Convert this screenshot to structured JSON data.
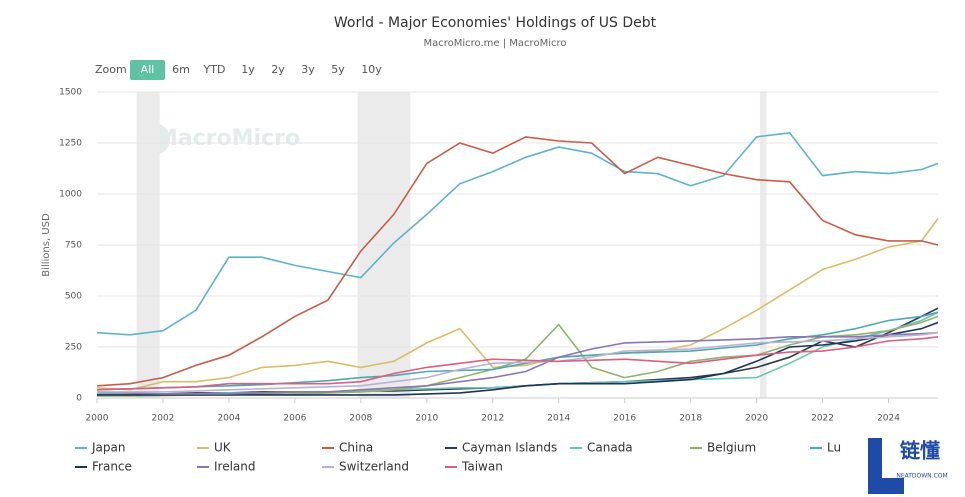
{
  "chart_data": {
    "type": "line",
    "title": "World - Major Economies' Holdings of US Debt",
    "subtitle": "MacroMicro.me | MacroMicro",
    "y_label": "Billions, USD",
    "zoom_label": "Zoom",
    "zoom_options": [
      "All",
      "6m",
      "YTD",
      "1y",
      "2y",
      "3y",
      "5y",
      "10y"
    ],
    "zoom_selected": "All",
    "watermark": "MacroMicro",
    "corner_mark": "链懂",
    "corner_mark_sub": "NEATDOWN.COM",
    "xlim": [
      2000,
      2025.5
    ],
    "xticks": [
      2000,
      2002,
      2004,
      2006,
      2008,
      2010,
      2012,
      2014,
      2016,
      2018,
      2020,
      2022,
      2024
    ],
    "ylim": [
      0,
      1500
    ],
    "yticks": [
      0,
      250,
      500,
      750,
      1000,
      1250,
      1500
    ],
    "grid": true,
    "shaded": [
      [
        2001.2,
        2001.9
      ],
      [
        2007.9,
        2009.5
      ],
      [
        2020.1,
        2020.3
      ]
    ],
    "x": [
      2000,
      2001,
      2002,
      2003,
      2004,
      2005,
      2006,
      2007,
      2008,
      2009,
      2010,
      2011,
      2012,
      2013,
      2014,
      2015,
      2016,
      2017,
      2018,
      2019,
      2020,
      2021,
      2022,
      2023,
      2024,
      2025,
      2025.5
    ],
    "series": [
      {
        "name": "Japan",
        "color": "#5fb3c9",
        "values": [
          320,
          310,
          330,
          430,
          690,
          690,
          650,
          620,
          590,
          760,
          900,
          1050,
          1110,
          1180,
          1230,
          1200,
          1110,
          1100,
          1040,
          1090,
          1280,
          1300,
          1090,
          1110,
          1100,
          1120,
          1150
        ]
      },
      {
        "name": "UK",
        "color": "#d8be6a",
        "values": [
          50,
          40,
          80,
          80,
          100,
          150,
          160,
          180,
          150,
          180,
          270,
          340,
          150,
          160,
          200,
          210,
          220,
          230,
          260,
          340,
          430,
          530,
          630,
          680,
          740,
          770,
          880
        ]
      },
      {
        "name": "China",
        "color": "#c65d4b",
        "values": [
          60,
          70,
          100,
          160,
          210,
          300,
          400,
          480,
          720,
          900,
          1150,
          1250,
          1200,
          1280,
          1260,
          1250,
          1100,
          1180,
          1140,
          1100,
          1070,
          1060,
          870,
          800,
          770,
          770,
          750
        ]
      },
      {
        "name": "Cayman Islands",
        "color": "#2e3a4f",
        "values": [
          20,
          20,
          20,
          25,
          25,
          30,
          30,
          30,
          35,
          35,
          40,
          45,
          50,
          60,
          70,
          75,
          80,
          90,
          100,
          120,
          150,
          200,
          280,
          250,
          320,
          400,
          440
        ]
      },
      {
        "name": "Canada",
        "color": "#6cc3b7",
        "values": [
          20,
          20,
          20,
          20,
          25,
          25,
          30,
          30,
          35,
          40,
          45,
          50,
          50,
          60,
          70,
          75,
          80,
          85,
          90,
          95,
          100,
          170,
          250,
          290,
          330,
          380,
          420
        ]
      },
      {
        "name": "Belgium",
        "color": "#8fb36e",
        "values": [
          10,
          10,
          12,
          15,
          15,
          20,
          20,
          25,
          30,
          40,
          60,
          100,
          140,
          190,
          360,
          150,
          100,
          130,
          180,
          200,
          210,
          260,
          300,
          310,
          330,
          370,
          400
        ]
      },
      {
        "name": "Lu",
        "color": "#4ea8b0",
        "values": [
          40,
          45,
          50,
          55,
          60,
          65,
          75,
          85,
          100,
          110,
          130,
          135,
          140,
          170,
          200,
          210,
          220,
          225,
          230,
          245,
          260,
          290,
          310,
          340,
          380,
          400,
          420
        ]
      },
      {
        "name": "France",
        "color": "#1d3557",
        "values": [
          15,
          15,
          15,
          15,
          15,
          15,
          15,
          15,
          15,
          15,
          20,
          25,
          40,
          60,
          70,
          70,
          70,
          80,
          90,
          120,
          180,
          250,
          260,
          280,
          310,
          340,
          370
        ]
      },
      {
        "name": "Ireland",
        "color": "#8a76b3",
        "values": [
          30,
          25,
          20,
          20,
          20,
          25,
          30,
          30,
          40,
          50,
          60,
          80,
          100,
          130,
          200,
          240,
          270,
          275,
          280,
          285,
          290,
          300,
          300,
          300,
          310,
          315,
          320
        ]
      },
      {
        "name": "Switzerland",
        "color": "#b9b2d4",
        "values": [
          30,
          30,
          30,
          35,
          40,
          45,
          50,
          55,
          60,
          80,
          100,
          140,
          170,
          175,
          180,
          200,
          230,
          235,
          240,
          255,
          270,
          275,
          280,
          290,
          300,
          310,
          320
        ]
      },
      {
        "name": "Taiwan",
        "color": "#d9607e",
        "values": [
          40,
          45,
          50,
          55,
          70,
          70,
          70,
          70,
          80,
          120,
          150,
          170,
          190,
          185,
          180,
          185,
          190,
          180,
          170,
          190,
          210,
          225,
          230,
          250,
          280,
          290,
          300
        ]
      }
    ]
  }
}
